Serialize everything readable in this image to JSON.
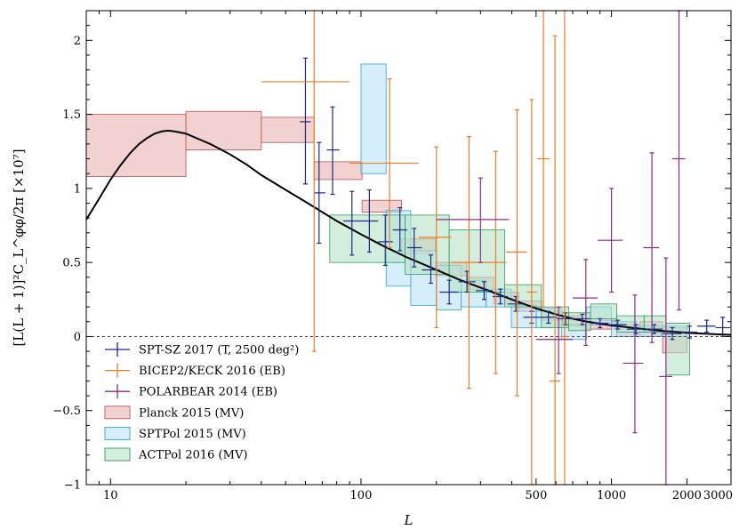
{
  "chart_data": {
    "type": "scatter",
    "xlabel": "L",
    "ylabel": "[L(L + 1)]²C_L^φφ/2π [×10⁷]",
    "x_scale": "log",
    "xlim": [
      8,
      3000
    ],
    "ylim": [
      -1,
      2.2
    ],
    "x_ticks": [
      10,
      100,
      500,
      1000,
      2000,
      3000
    ],
    "x_tick_labels": [
      "10",
      "100",
      "500",
      "1000",
      "2000",
      "3000"
    ],
    "y_ticks": [
      -1,
      -0.5,
      0,
      0.5,
      1,
      1.5,
      2
    ],
    "y_tick_labels": [
      "−1",
      "−0.5",
      "0",
      "0.5",
      "1",
      "1.5",
      "2"
    ],
    "zero_line": true,
    "theory_curve": {
      "color": "#000000",
      "points": [
        [
          8,
          0.79
        ],
        [
          9,
          0.93
        ],
        [
          10,
          1.06
        ],
        [
          11,
          1.16
        ],
        [
          12,
          1.24
        ],
        [
          13,
          1.3
        ],
        [
          14,
          1.34
        ],
        [
          15,
          1.37
        ],
        [
          16,
          1.385
        ],
        [
          17,
          1.39
        ],
        [
          18,
          1.385
        ],
        [
          20,
          1.37
        ],
        [
          22,
          1.34
        ],
        [
          25,
          1.3
        ],
        [
          30,
          1.23
        ],
        [
          35,
          1.16
        ],
        [
          40,
          1.09
        ],
        [
          50,
          0.99
        ],
        [
          60,
          0.91
        ],
        [
          70,
          0.84
        ],
        [
          80,
          0.78
        ],
        [
          100,
          0.69
        ],
        [
          120,
          0.62
        ],
        [
          150,
          0.54
        ],
        [
          200,
          0.45
        ],
        [
          250,
          0.38
        ],
        [
          300,
          0.33
        ],
        [
          400,
          0.25
        ],
        [
          500,
          0.19
        ],
        [
          600,
          0.15
        ],
        [
          700,
          0.12
        ],
        [
          800,
          0.1
        ],
        [
          1000,
          0.075
        ],
        [
          1200,
          0.06
        ],
        [
          1500,
          0.042
        ],
        [
          2000,
          0.025
        ],
        [
          2500,
          0.017
        ],
        [
          3000,
          0.012
        ]
      ]
    },
    "series": [
      {
        "name": "SPT-SZ 2017 (T, 2500 deg²)",
        "color": "#1c2a8a",
        "kind": "errorbar",
        "points": [
          {
            "x": 60,
            "y": 1.45,
            "xlo": 57,
            "xhi": 63,
            "ylo": 1.03,
            "yhi": 1.88
          },
          {
            "x": 68,
            "y": 0.97,
            "xlo": 65,
            "xhi": 72,
            "ylo": 0.63,
            "yhi": 1.31
          },
          {
            "x": 77,
            "y": 1.26,
            "xlo": 73,
            "xhi": 82,
            "ylo": 0.96,
            "yhi": 1.55
          },
          {
            "x": 92,
            "y": 0.78,
            "xlo": 85,
            "xhi": 100,
            "ylo": 0.55,
            "yhi": 0.98
          },
          {
            "x": 108,
            "y": 0.78,
            "xlo": 100,
            "xhi": 117,
            "ylo": 0.57,
            "yhi": 0.99
          },
          {
            "x": 125,
            "y": 0.64,
            "xlo": 117,
            "xhi": 134,
            "ylo": 0.48,
            "yhi": 0.82
          },
          {
            "x": 143,
            "y": 0.72,
            "xlo": 134,
            "xhi": 153,
            "ylo": 0.58,
            "yhi": 0.87
          },
          {
            "x": 163,
            "y": 0.6,
            "xlo": 153,
            "xhi": 175,
            "ylo": 0.47,
            "yhi": 0.73
          },
          {
            "x": 190,
            "y": 0.45,
            "xlo": 175,
            "xhi": 206,
            "ylo": 0.36,
            "yhi": 0.55
          },
          {
            "x": 225,
            "y": 0.3,
            "xlo": 206,
            "xhi": 245,
            "ylo": 0.22,
            "yhi": 0.38
          },
          {
            "x": 265,
            "y": 0.37,
            "xlo": 245,
            "xhi": 287,
            "ylo": 0.3,
            "yhi": 0.44
          },
          {
            "x": 310,
            "y": 0.31,
            "xlo": 287,
            "xhi": 335,
            "ylo": 0.25,
            "yhi": 0.37
          },
          {
            "x": 360,
            "y": 0.27,
            "xlo": 335,
            "xhi": 385,
            "ylo": 0.22,
            "yhi": 0.32
          },
          {
            "x": 415,
            "y": 0.22,
            "xlo": 385,
            "xhi": 445,
            "ylo": 0.17,
            "yhi": 0.27
          },
          {
            "x": 480,
            "y": 0.13,
            "xlo": 445,
            "xhi": 515,
            "ylo": 0.09,
            "yhi": 0.17
          },
          {
            "x": 560,
            "y": 0.13,
            "xlo": 515,
            "xhi": 605,
            "ylo": 0.09,
            "yhi": 0.17
          },
          {
            "x": 655,
            "y": 0.12,
            "xlo": 605,
            "xhi": 705,
            "ylo": 0.08,
            "yhi": 0.16
          },
          {
            "x": 765,
            "y": 0.12,
            "xlo": 705,
            "xhi": 825,
            "ylo": 0.08,
            "yhi": 0.15
          },
          {
            "x": 900,
            "y": 0.09,
            "xlo": 825,
            "xhi": 975,
            "ylo": 0.06,
            "yhi": 0.12
          },
          {
            "x": 1060,
            "y": 0.08,
            "xlo": 975,
            "xhi": 1150,
            "ylo": 0.05,
            "yhi": 0.11
          },
          {
            "x": 1250,
            "y": 0.05,
            "xlo": 1150,
            "xhi": 1360,
            "ylo": 0.02,
            "yhi": 0.08
          },
          {
            "x": 1480,
            "y": 0.05,
            "xlo": 1360,
            "xhi": 1600,
            "ylo": 0.02,
            "yhi": 0.08
          },
          {
            "x": 1750,
            "y": 0.02,
            "xlo": 1600,
            "xhi": 1900,
            "ylo": -0.02,
            "yhi": 0.06
          },
          {
            "x": 2050,
            "y": 0.03,
            "xlo": 1900,
            "xhi": 2200,
            "ylo": -0.01,
            "yhi": 0.07
          },
          {
            "x": 2400,
            "y": 0.07,
            "xlo": 2200,
            "xhi": 2600,
            "ylo": 0.03,
            "yhi": 0.11
          },
          {
            "x": 2780,
            "y": 0.06,
            "xlo": 2600,
            "xhi": 2980,
            "ylo": 0.0,
            "yhi": 0.13
          }
        ]
      },
      {
        "name": "BICEP2/KECK 2016 (EB)",
        "color": "#ee7d23",
        "kind": "errorbar",
        "points": [
          {
            "x": 65,
            "y": 1.72,
            "xlo": 40,
            "xhi": 90,
            "ylo": -0.1,
            "yhi": 2.2
          },
          {
            "x": 130,
            "y": 1.17,
            "xlo": 90,
            "xhi": 170,
            "ylo": 0.6,
            "yhi": 1.74
          },
          {
            "x": 200,
            "y": 0.67,
            "xlo": 170,
            "xhi": 230,
            "ylo": 0.06,
            "yhi": 1.28
          },
          {
            "x": 270,
            "y": 0.5,
            "xlo": 230,
            "xhi": 310,
            "ylo": -0.35,
            "yhi": 1.35
          },
          {
            "x": 345,
            "y": 0.5,
            "xlo": 310,
            "xhi": 380,
            "ylo": -0.25,
            "yhi": 1.25
          },
          {
            "x": 420,
            "y": 0.57,
            "xlo": 380,
            "xhi": 460,
            "ylo": -0.4,
            "yhi": 1.53
          },
          {
            "x": 480,
            "y": 0.3,
            "xlo": 460,
            "xhi": 505,
            "ylo": -1.0,
            "yhi": 1.6
          },
          {
            "x": 535,
            "y": 1.2,
            "xlo": 505,
            "xhi": 565,
            "ylo": 0.2,
            "yhi": 2.2
          },
          {
            "x": 595,
            "y": -0.3,
            "xlo": 565,
            "xhi": 625,
            "ylo": -1.0,
            "yhi": 2.03
          },
          {
            "x": 650,
            "y": 0.0,
            "xlo": 625,
            "xhi": 675,
            "ylo": -1.0,
            "yhi": 2.2
          }
        ]
      },
      {
        "name": "POLARBEAR 2014 (EB)",
        "color": "#8c2c8a",
        "kind": "errorbar",
        "points": [
          {
            "x": 300,
            "y": 0.79,
            "xlo": 200,
            "xhi": 390,
            "ylo": 0.5,
            "yhi": 1.07
          },
          {
            "x": 615,
            "y": -0.02,
            "xlo": 500,
            "xhi": 700,
            "ylo": -0.25,
            "yhi": 0.2
          },
          {
            "x": 790,
            "y": 0.26,
            "xlo": 700,
            "xhi": 880,
            "ylo": -0.06,
            "yhi": 0.52
          },
          {
            "x": 1000,
            "y": 0.65,
            "xlo": 880,
            "xhi": 1110,
            "ylo": 0.3,
            "yhi": 1.0
          },
          {
            "x": 1240,
            "y": -0.18,
            "xlo": 1110,
            "xhi": 1340,
            "ylo": -0.65,
            "yhi": 0.28
          },
          {
            "x": 1450,
            "y": 0.6,
            "xlo": 1340,
            "xhi": 1550,
            "ylo": -0.04,
            "yhi": 1.24
          },
          {
            "x": 1650,
            "y": -0.27,
            "xlo": 1550,
            "xhi": 1750,
            "ylo": -1.0,
            "yhi": 0.53
          },
          {
            "x": 1860,
            "y": 1.2,
            "xlo": 1750,
            "xhi": 1970,
            "ylo": 0.18,
            "yhi": 2.2
          }
        ]
      },
      {
        "name": "Planck 2015 (MV)",
        "color": "#c0504d",
        "fill": "#e8b4b0",
        "kind": "box",
        "boxes": [
          {
            "xlo": 8,
            "xhi": 20,
            "ylo": 1.08,
            "yhi": 1.5
          },
          {
            "xlo": 20,
            "xhi": 40,
            "ylo": 1.26,
            "yhi": 1.52
          },
          {
            "xlo": 40,
            "xhi": 65,
            "ylo": 1.31,
            "yhi": 1.48
          },
          {
            "xlo": 65,
            "xhi": 101,
            "ylo": 1.06,
            "yhi": 1.18
          },
          {
            "xlo": 101,
            "xhi": 145,
            "ylo": 0.84,
            "yhi": 0.92
          },
          {
            "xlo": 145,
            "xhi": 198,
            "ylo": 0.56,
            "yhi": 0.66
          },
          {
            "xlo": 198,
            "xhi": 264,
            "ylo": 0.41,
            "yhi": 0.5
          },
          {
            "xlo": 264,
            "xhi": 339,
            "ylo": 0.32,
            "yhi": 0.4
          },
          {
            "xlo": 339,
            "xhi": 426,
            "ylo": 0.22,
            "yhi": 0.3
          },
          {
            "xlo": 426,
            "xhi": 526,
            "ylo": 0.17,
            "yhi": 0.24
          },
          {
            "xlo": 526,
            "xhi": 638,
            "ylo": 0.11,
            "yhi": 0.17
          },
          {
            "xlo": 638,
            "xhi": 763,
            "ylo": 0.07,
            "yhi": 0.14
          },
          {
            "xlo": 763,
            "xhi": 901,
            "ylo": 0.05,
            "yhi": 0.12
          },
          {
            "xlo": 901,
            "xhi": 1050,
            "ylo": 0.05,
            "yhi": 0.11
          },
          {
            "xlo": 1050,
            "xhi": 1300,
            "ylo": 0.0,
            "yhi": 0.08
          },
          {
            "xlo": 1300,
            "xhi": 1600,
            "ylo": 0.0,
            "yhi": 0.1
          },
          {
            "xlo": 1600,
            "xhi": 2000,
            "ylo": -0.11,
            "yhi": 0.06
          }
        ]
      },
      {
        "name": "SPTPol 2015 (MV)",
        "color": "#2fa3d6",
        "fill": "#b9e3f5",
        "kind": "box",
        "boxes": [
          {
            "xlo": 100,
            "xhi": 126,
            "ylo": 1.1,
            "yhi": 1.84
          },
          {
            "xlo": 126,
            "xhi": 158,
            "ylo": 0.34,
            "yhi": 0.85
          },
          {
            "xlo": 158,
            "xhi": 200,
            "ylo": 0.21,
            "yhi": 0.58
          },
          {
            "xlo": 200,
            "xhi": 251,
            "ylo": 0.18,
            "yhi": 0.48
          },
          {
            "xlo": 251,
            "xhi": 316,
            "ylo": 0.2,
            "yhi": 0.38
          },
          {
            "xlo": 316,
            "xhi": 398,
            "ylo": 0.2,
            "yhi": 0.32
          },
          {
            "xlo": 398,
            "xhi": 501,
            "ylo": 0.06,
            "yhi": 0.21
          },
          {
            "xlo": 501,
            "xhi": 631,
            "ylo": 0.06,
            "yhi": 0.19
          },
          {
            "xlo": 631,
            "xhi": 794,
            "ylo": -0.02,
            "yhi": 0.08
          },
          {
            "xlo": 794,
            "xhi": 1000,
            "ylo": 0.08,
            "yhi": 0.2
          },
          {
            "xlo": 1000,
            "xhi": 1259,
            "ylo": 0.0,
            "yhi": 0.1
          },
          {
            "xlo": 1259,
            "xhi": 1585,
            "ylo": 0.0,
            "yhi": 0.07
          },
          {
            "xlo": 1585,
            "xhi": 2000,
            "ylo": 0.0,
            "yhi": 0.07
          }
        ]
      },
      {
        "name": "ACTPol 2016 (MV)",
        "color": "#2e9e5b",
        "fill": "#b5e2c6",
        "kind": "box",
        "boxes": [
          {
            "xlo": 75,
            "xhi": 150,
            "ylo": 0.5,
            "yhi": 0.82
          },
          {
            "xlo": 150,
            "xhi": 225,
            "ylo": 0.42,
            "yhi": 0.82
          },
          {
            "xlo": 225,
            "xhi": 375,
            "ylo": 0.3,
            "yhi": 0.72
          },
          {
            "xlo": 375,
            "xhi": 525,
            "ylo": 0.2,
            "yhi": 0.35
          },
          {
            "xlo": 525,
            "xhi": 675,
            "ylo": 0.06,
            "yhi": 0.2
          },
          {
            "xlo": 675,
            "xhi": 825,
            "ylo": 0.04,
            "yhi": 0.16
          },
          {
            "xlo": 825,
            "xhi": 1050,
            "ylo": 0.12,
            "yhi": 0.22
          },
          {
            "xlo": 1050,
            "xhi": 1350,
            "ylo": 0.03,
            "yhi": 0.14
          },
          {
            "xlo": 1350,
            "xhi": 1650,
            "ylo": 0.03,
            "yhi": 0.14
          },
          {
            "xlo": 1650,
            "xhi": 2050,
            "ylo": -0.26,
            "yhi": 0.09
          }
        ]
      }
    ],
    "legend": {
      "placement": "bottom-left",
      "entries": [
        {
          "label": "SPT-SZ 2017 (T, 2500 deg²)",
          "marker": "errorbar",
          "color": "#1c2a8a"
        },
        {
          "label": "BICEP2/KECK 2016 (EB)",
          "marker": "errorbar",
          "color": "#ee7d23"
        },
        {
          "label": "POLARBEAR 2014 (EB)",
          "marker": "errorbar",
          "color": "#8c2c8a"
        },
        {
          "label": "Planck 2015 (MV)",
          "marker": "box",
          "color": "#c0504d",
          "fill": "#e8b4b0"
        },
        {
          "label": "SPTPol 2015 (MV)",
          "marker": "box",
          "color": "#2fa3d6",
          "fill": "#b9e3f5"
        },
        {
          "label": "ACTPol 2016 (MV)",
          "marker": "box",
          "color": "#2e9e5b",
          "fill": "#b5e2c6"
        }
      ]
    }
  }
}
